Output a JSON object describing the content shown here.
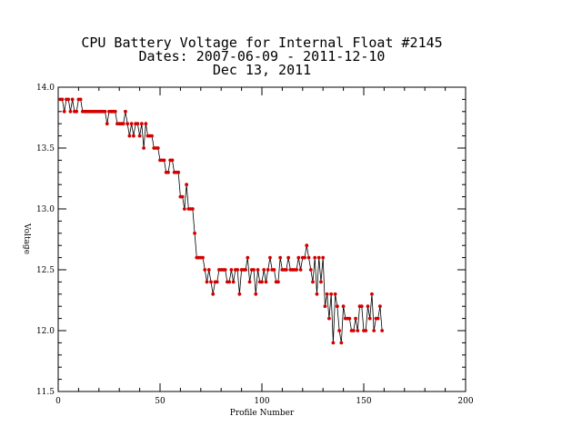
{
  "chart_data": {
    "type": "line",
    "title_lines": [
      "CPU Battery Voltage for Internal Float #2145",
      "Dates:  2007-06-09 -  2011-12-10",
      "Dec 13, 2011"
    ],
    "xlabel": "Profile Number",
    "ylabel": "Voltage",
    "xlim": [
      0,
      200
    ],
    "ylim": [
      11.5,
      14.0
    ],
    "x_ticks": [
      0,
      50,
      100,
      150,
      200
    ],
    "y_ticks": [
      11.5,
      12.0,
      12.5,
      13.0,
      13.5,
      14.0
    ],
    "x_tick_labels": [
      "0",
      "50",
      "100",
      "150",
      "200"
    ],
    "y_tick_labels": [
      "11.5",
      "12.0",
      "12.5",
      "13.0",
      "13.5",
      "14.0"
    ],
    "line_color": "#000000",
    "marker_color": "#d40000",
    "values": [
      13.9,
      13.9,
      13.8,
      13.9,
      13.9,
      13.8,
      13.9,
      13.8,
      13.8,
      13.9,
      13.9,
      13.8,
      13.8,
      13.8,
      13.8,
      13.8,
      13.8,
      13.8,
      13.8,
      13.8,
      13.8,
      13.8,
      13.8,
      13.7,
      13.8,
      13.8,
      13.8,
      13.8,
      13.7,
      13.7,
      13.7,
      13.7,
      13.8,
      13.7,
      13.6,
      13.7,
      13.6,
      13.7,
      13.7,
      13.6,
      13.7,
      13.5,
      13.7,
      13.6,
      13.6,
      13.6,
      13.5,
      13.5,
      13.5,
      13.4,
      13.4,
      13.4,
      13.3,
      13.3,
      13.4,
      13.4,
      13.3,
      13.3,
      13.3,
      13.1,
      13.1,
      13.0,
      13.2,
      13.0,
      13.0,
      13.0,
      12.8,
      12.6,
      12.6,
      12.6,
      12.6,
      12.5,
      12.4,
      12.5,
      12.4,
      12.3,
      12.4,
      12.4,
      12.5,
      12.5,
      12.5,
      12.5,
      12.4,
      12.4,
      12.5,
      12.4,
      12.5,
      12.5,
      12.3,
      12.5,
      12.5,
      12.5,
      12.6,
      12.4,
      12.5,
      12.5,
      12.3,
      12.5,
      12.4,
      12.4,
      12.5,
      12.4,
      12.5,
      12.6,
      12.5,
      12.5,
      12.4,
      12.4,
      12.6,
      12.5,
      12.5,
      12.5,
      12.6,
      12.5,
      12.5,
      12.5,
      12.5,
      12.6,
      12.5,
      12.6,
      12.6,
      12.7,
      12.6,
      12.5,
      12.4,
      12.6,
      12.3,
      12.6,
      12.4,
      12.6,
      12.2,
      12.3,
      12.1,
      12.3,
      11.9,
      12.3,
      12.2,
      12.0,
      11.9,
      12.2,
      12.1,
      12.1,
      12.1,
      12.0,
      12.0,
      12.1,
      12.0,
      12.2,
      12.2,
      12.0,
      12.0,
      12.2,
      12.1,
      12.3,
      12.0,
      12.1,
      12.1,
      12.2,
      12.0
    ]
  }
}
